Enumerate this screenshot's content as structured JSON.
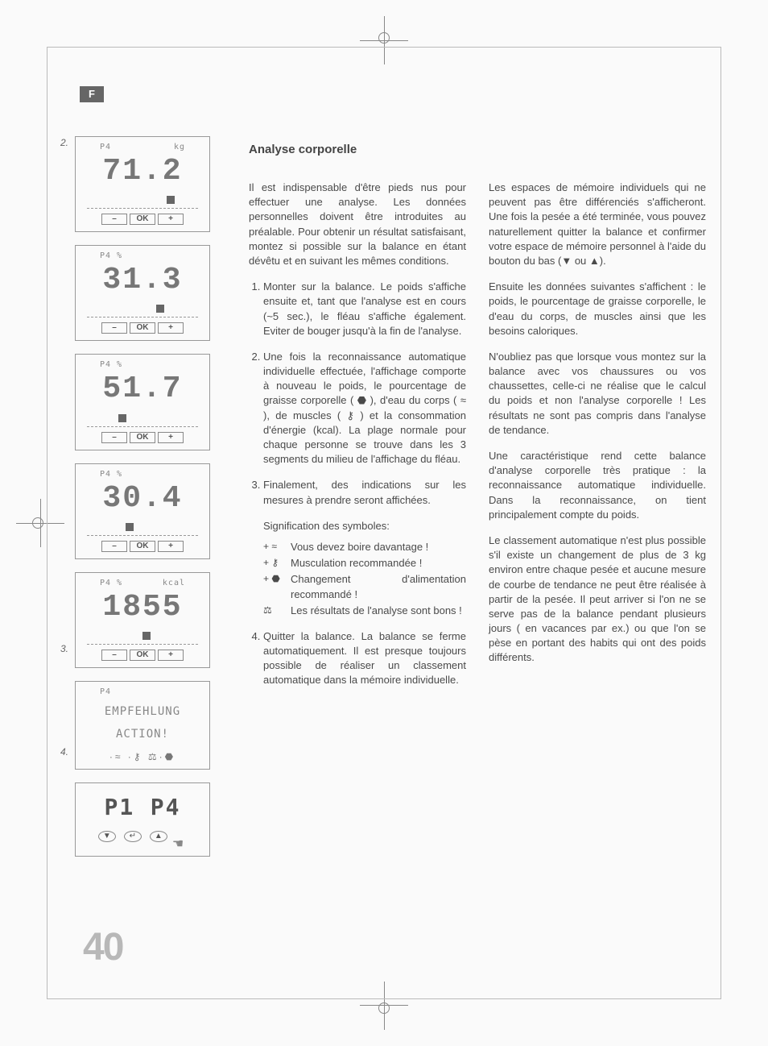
{
  "langTab": "F",
  "pageNumber": "40",
  "heading": "Analyse corporelle",
  "figures": {
    "step2": "2.",
    "step3": "3.",
    "step4": "4.",
    "lcd": [
      {
        "top_left": "P4",
        "top_right": "kg",
        "value": "71.2",
        "marker_pct": 72
      },
      {
        "top_left": "P4 %",
        "top_right": "",
        "value": "31.3",
        "marker_pct": 62
      },
      {
        "top_left": "P4 %",
        "top_right": "",
        "value": "51.7",
        "marker_pct": 28
      },
      {
        "top_left": "P4 %",
        "top_right": "",
        "value": "30.4",
        "marker_pct": 35
      },
      {
        "top_left": "P4 %",
        "top_right": "kcal",
        "value": "1855",
        "marker_pct": 50
      }
    ],
    "btn_minus": "–",
    "btn_ok": "OK",
    "btn_plus": "+",
    "reco_top": "P4",
    "reco_line1": "EMPFEHLUNG",
    "reco_line2": "ACTION!",
    "reco_syms": "·≈ ·⚷ ⚖·⬣",
    "sel_left": "P1",
    "sel_right": "P4",
    "sel_down": "▼",
    "sel_enter": "↵",
    "sel_up": "▲",
    "hand": "☚"
  },
  "col1": {
    "intro": "Il est indispensable d'être pieds nus pour effectuer une analyse. Les données personnelles doivent être introduites au préalable. Pour obtenir un résultat satisfaisant, montez si possible sur la balance en étant dévêtu et en suivant les mêmes conditions.",
    "li1": "Monter sur la balance. Le poids s'affiche ensuite et, tant que l'analyse est en cours (~5 sec.), le fléau s'affiche également. Eviter de bouger jusqu'à la fin de l'analyse.",
    "li2": "Une fois la reconnaissance automatique individuelle effectuée, l'affichage comporte à nouveau le poids, le pourcentage de graisse corporelle ( ⬣ ), d'eau du corps ( ≈ ), de muscles ( ⚷ ) et la consommation d'énergie (kcal). La plage normale pour chaque personne se trouve dans les 3 segments du milieu de l'affichage du fléau.",
    "li3": "Finalement, des indications sur les mesures à prendre seront affichées.",
    "sig_label": "Signification des symboles:",
    "sym": [
      {
        "pre": "+ ≈",
        "txt": "Vous devez boire davantage !"
      },
      {
        "pre": "+ ⚷",
        "txt": "Musculation recommandée !"
      },
      {
        "pre": "+ ⬣",
        "txt": "Changement d'alimentation recommandé !"
      },
      {
        "pre": "   ⚖",
        "txt": "Les résultats de l'analyse sont bons !"
      }
    ],
    "li4": "Quitter la balance. La balance se ferme automatiquement. Il est presque toujours possible de réaliser un classement automatique dans la mémoire individuelle."
  },
  "col2": {
    "p1": "Les espaces de mémoire individuels qui ne peuvent pas être différenciés s'afficheront. Une fois la pesée a été terminée, vous pouvez naturellement quitter la balance et confirmer votre espace de mémoire personnel à l'aide du bouton du bas (▼ ou ▲).",
    "p2": "Ensuite les données suivantes s'affichent : le poids, le pourcentage de graisse corporelle, le d'eau du corps, de muscles ainsi que les besoins caloriques.",
    "p3": "N'oubliez pas que lorsque vous montez sur la balance avec vos chaussures ou vos chaussettes, celle-ci ne réalise que le calcul du poids et non l'analyse corporelle ! Les résultats ne sont pas compris dans l'analyse de tendance.",
    "p4": "Une caractéristique rend cette balance d'analyse corporelle très pratique : la reconnaissance automatique individuelle. Dans la reconnaissance, on tient principalement compte du poids.",
    "p5": "Le classement automatique n'est plus possible s'il existe un changement de plus de 3 kg environ entre chaque pesée et aucune mesure de courbe de tendance ne peut être réalisée à partir de la pesée. Il peut arriver si l'on ne se serve pas de la balance pendant plusieurs jours ( en vacances par ex.) ou que l'on se pèse en portant des habits qui ont des poids différents."
  }
}
